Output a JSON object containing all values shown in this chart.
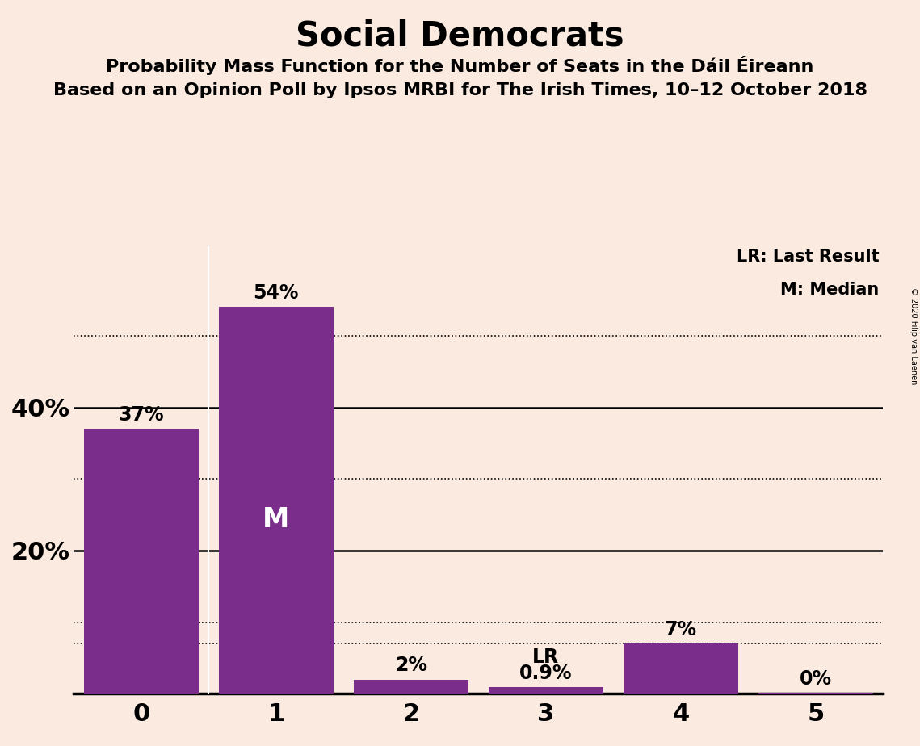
{
  "title": "Social Democrats",
  "subtitle1": "Probability Mass Function for the Number of Seats in the Dáil Éireann",
  "subtitle2": "Based on an Opinion Poll by Ipsos MRBI for The Irish Times, 10–12 October 2018",
  "copyright": "© 2020 Filip van Laenen",
  "categories": [
    0,
    1,
    2,
    3,
    4,
    5
  ],
  "values": [
    0.37,
    0.54,
    0.02,
    0.009,
    0.07,
    0.001
  ],
  "bar_labels": [
    "37%",
    "54%",
    "2%",
    "0.9%",
    "7%",
    "0%"
  ],
  "bar_color": "#7b2d8b",
  "background_color": "#faeae0",
  "median_bar": 1,
  "median_label": "M",
  "lr_bar": 3,
  "lr_label": "LR",
  "ytick_labels": [
    "",
    "20%",
    "40%"
  ],
  "ytick_values": [
    0.0,
    0.2,
    0.4
  ],
  "dotted_lines": [
    0.1,
    0.3,
    0.5
  ],
  "solid_lines": [
    0.2,
    0.4
  ],
  "dotted_line_lr": 0.07,
  "xlim": [
    -0.5,
    5.5
  ],
  "ylim": [
    0,
    0.625
  ],
  "title_fontsize": 30,
  "subtitle_fontsize": 16,
  "legend_lr": "LR: Last Result",
  "legend_m": "M: Median",
  "bar_width": 0.85
}
